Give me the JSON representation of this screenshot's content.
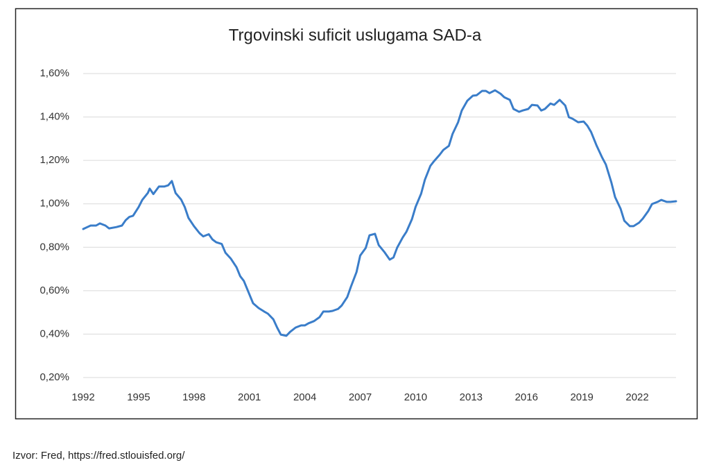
{
  "chart_data": {
    "type": "line",
    "title": "Trgovinski suficit uslugama SAD-a",
    "source": "Izvor: Fred, https://fred.stlouisfed.org/",
    "series": [
      {
        "name": "Trgovinski suficit uslugama",
        "color": "#3a7dc9",
        "x": [
          1992.0,
          1992.4,
          1992.7,
          1992.9,
          1993.2,
          1993.4,
          1993.8,
          1994.1,
          1994.3,
          1994.5,
          1994.7,
          1995.0,
          1995.2,
          1995.5,
          1995.6,
          1995.8,
          1996.1,
          1996.4,
          1996.6,
          1996.8,
          1997.0,
          1997.3,
          1997.5,
          1997.7,
          1998.0,
          1998.3,
          1998.5,
          1998.8,
          1999.0,
          1999.2,
          1999.5,
          1999.7,
          2000.0,
          2000.3,
          2000.5,
          2000.7,
          2001.0,
          2001.2,
          2001.5,
          2001.8,
          2002.0,
          2002.3,
          2002.5,
          2002.7,
          2003.0,
          2003.2,
          2003.5,
          2003.8,
          2004.0,
          2004.2,
          2004.5,
          2004.8,
          2005.0,
          2005.3,
          2005.5,
          2005.8,
          2006.0,
          2006.3,
          2006.5,
          2006.8,
          2007.0,
          2007.3,
          2007.5,
          2007.8,
          2008.0,
          2008.3,
          2008.6,
          2008.8,
          2009.0,
          2009.3,
          2009.5,
          2009.8,
          2010.0,
          2010.3,
          2010.5,
          2010.8,
          2011.0,
          2011.3,
          2011.5,
          2011.8,
          2012.0,
          2012.3,
          2012.5,
          2012.8,
          2013.1,
          2013.3,
          2013.6,
          2013.8,
          2014.0,
          2014.3,
          2014.6,
          2014.8,
          2015.1,
          2015.3,
          2015.6,
          2015.8,
          2016.1,
          2016.3,
          2016.6,
          2016.8,
          2017.0,
          2017.3,
          2017.5,
          2017.8,
          2018.1,
          2018.3,
          2018.5,
          2018.8,
          2019.1,
          2019.3,
          2019.5,
          2019.8,
          2020.1,
          2020.3,
          2020.6,
          2020.8,
          2021.1,
          2021.3,
          2021.6,
          2021.8,
          2022.1,
          2022.3,
          2022.6,
          2022.8,
          2023.1,
          2023.3,
          2023.6,
          2023.8,
          2024.1
        ],
        "values": [
          0.884,
          0.9,
          0.9,
          0.91,
          0.9,
          0.887,
          0.893,
          0.9,
          0.925,
          0.94,
          0.945,
          0.985,
          1.018,
          1.05,
          1.07,
          1.045,
          1.08,
          1.08,
          1.085,
          1.105,
          1.05,
          1.02,
          0.985,
          0.935,
          0.897,
          0.865,
          0.85,
          0.86,
          0.836,
          0.823,
          0.815,
          0.775,
          0.747,
          0.708,
          0.667,
          0.645,
          0.583,
          0.542,
          0.52,
          0.504,
          0.494,
          0.468,
          0.43,
          0.398,
          0.392,
          0.41,
          0.43,
          0.44,
          0.44,
          0.45,
          0.46,
          0.478,
          0.504,
          0.504,
          0.507,
          0.516,
          0.532,
          0.571,
          0.619,
          0.686,
          0.762,
          0.797,
          0.855,
          0.862,
          0.81,
          0.779,
          0.743,
          0.753,
          0.798,
          0.845,
          0.871,
          0.929,
          0.986,
          1.047,
          1.111,
          1.175,
          1.197,
          1.226,
          1.248,
          1.267,
          1.322,
          1.376,
          1.43,
          1.475,
          1.498,
          1.5,
          1.52,
          1.52,
          1.51,
          1.523,
          1.507,
          1.491,
          1.479,
          1.437,
          1.424,
          1.43,
          1.437,
          1.456,
          1.453,
          1.43,
          1.437,
          1.462,
          1.456,
          1.479,
          1.453,
          1.399,
          1.392,
          1.376,
          1.379,
          1.36,
          1.331,
          1.268,
          1.213,
          1.181,
          1.098,
          1.031,
          0.977,
          0.922,
          0.897,
          0.897,
          0.913,
          0.932,
          0.967,
          0.999,
          1.009,
          1.018,
          1.009,
          1.009,
          1.012
        ]
      }
    ],
    "xlim": [
      1992,
      2024.1
    ],
    "xticks": [
      1992,
      1995,
      1998,
      2001,
      2004,
      2007,
      2010,
      2013,
      2016,
      2019,
      2022
    ],
    "ylim": [
      0.2,
      1.6
    ],
    "yticks": [
      {
        "value": 0.2,
        "label": "0,20%"
      },
      {
        "value": 0.4,
        "label": "0,40%"
      },
      {
        "value": 0.6,
        "label": "0,60%"
      },
      {
        "value": 0.8,
        "label": "0,80%"
      },
      {
        "value": 1.0,
        "label": "1,00%"
      },
      {
        "value": 1.2,
        "label": "1,20%"
      },
      {
        "value": 1.4,
        "label": "1,40%"
      },
      {
        "value": 1.6,
        "label": "1,60%"
      }
    ],
    "grid": true
  }
}
